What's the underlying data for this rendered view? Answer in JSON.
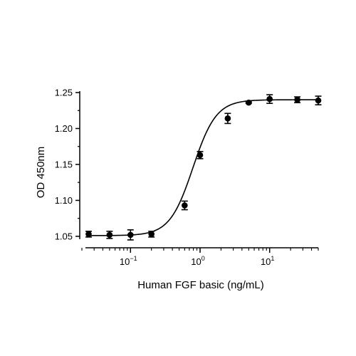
{
  "chart_data": {
    "type": "scatter",
    "xlabel": "Human FGF basic (ng/mL)",
    "ylabel": "OD 450nm",
    "x_scale": "log",
    "xlim": [
      0.02,
      50
    ],
    "ylim": [
      1.04,
      1.25
    ],
    "x_ticks": [
      {
        "value": 0.1,
        "base": "10",
        "exp": "−1"
      },
      {
        "value": 1,
        "base": "10",
        "exp": "0"
      },
      {
        "value": 10,
        "base": "10",
        "exp": "1"
      }
    ],
    "y_ticks": [
      {
        "value": 1.05,
        "label": "1.05"
      },
      {
        "value": 1.1,
        "label": "1.10"
      },
      {
        "value": 1.15,
        "label": "1.15"
      },
      {
        "value": 1.2,
        "label": "1.20"
      },
      {
        "value": 1.25,
        "label": "1.25"
      }
    ],
    "grid": false,
    "legend": "none",
    "series": [
      {
        "points": [
          {
            "x": 0.025,
            "y": 1.053,
            "err": 0.004
          },
          {
            "x": 0.05,
            "y": 1.052,
            "err": 0.005
          },
          {
            "x": 0.1,
            "y": 1.052,
            "err": 0.007
          },
          {
            "x": 0.2,
            "y": 1.053,
            "err": 0.004
          },
          {
            "x": 0.6,
            "y": 1.093,
            "err": 0.006
          },
          {
            "x": 1.0,
            "y": 1.163,
            "err": 0.005
          },
          {
            "x": 2.5,
            "y": 1.214,
            "err": 0.007
          },
          {
            "x": 5.0,
            "y": 1.236,
            "err": 0.001
          },
          {
            "x": 10.0,
            "y": 1.241,
            "err": 0.006
          },
          {
            "x": 25.0,
            "y": 1.24,
            "err": 0.004
          },
          {
            "x": 50.0,
            "y": 1.239,
            "err": 0.006
          }
        ],
        "fit": {
          "model": "4PL",
          "bottom": 1.051,
          "top": 1.24,
          "ec50": 0.79,
          "hill": 2.6
        }
      }
    ],
    "colors": {
      "marker": "#000000",
      "line": "#000000",
      "axis": "#000000"
    }
  }
}
